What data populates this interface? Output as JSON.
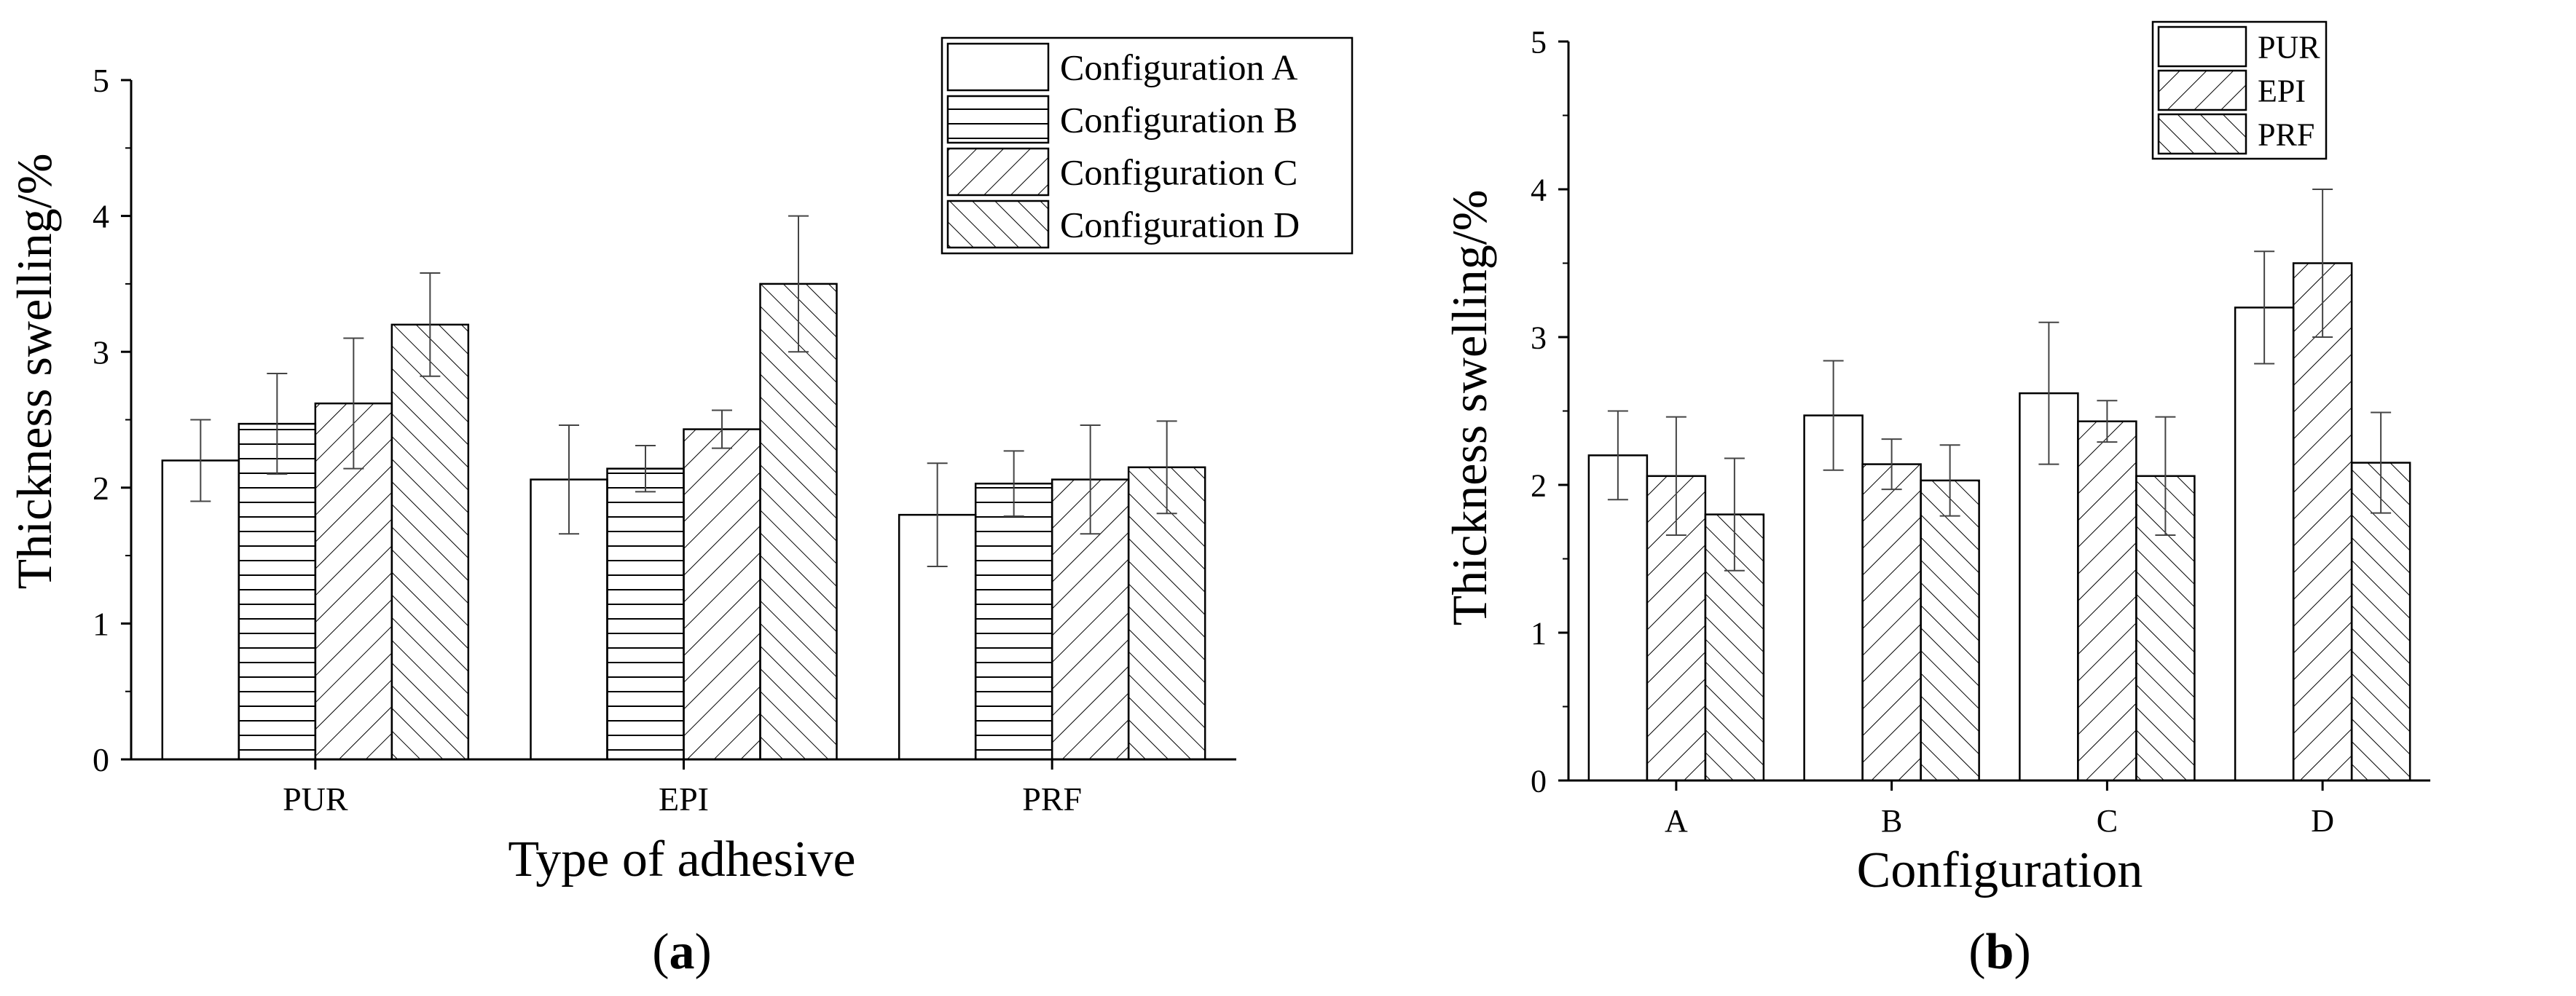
{
  "chart_data": [
    {
      "type": "bar",
      "panel_label": "a",
      "xlabel": "Type of adhesive",
      "ylabel": "Thickness swelling/%",
      "ylim": [
        0,
        5
      ],
      "yticks": [
        "0",
        "1",
        "2",
        "3",
        "4",
        "5"
      ],
      "categories": [
        "PUR",
        "EPI",
        "PRF"
      ],
      "series": [
        {
          "name": "Configuration A",
          "pattern": "plain",
          "values": [
            2.2,
            2.06,
            1.8
          ],
          "errors": [
            0.3,
            0.4,
            0.38
          ]
        },
        {
          "name": "Configuration B",
          "pattern": "horizontal",
          "values": [
            2.47,
            2.14,
            2.03
          ],
          "errors": [
            0.37,
            0.17,
            0.24
          ]
        },
        {
          "name": "Configuration C",
          "pattern": "diagonal-up",
          "values": [
            2.62,
            2.43,
            2.06
          ],
          "errors": [
            0.48,
            0.14,
            0.4
          ]
        },
        {
          "name": "Configuration D",
          "pattern": "diagonal-down",
          "values": [
            3.2,
            3.5,
            2.15
          ],
          "errors": [
            0.38,
            0.5,
            0.34
          ]
        }
      ]
    },
    {
      "type": "bar",
      "panel_label": "b",
      "xlabel": "Configuration",
      "ylabel": "Thickness swelling/%",
      "ylim": [
        0,
        5
      ],
      "yticks": [
        "0",
        "1",
        "2",
        "3",
        "4",
        "5"
      ],
      "categories": [
        "A",
        "B",
        "C",
        "D"
      ],
      "series": [
        {
          "name": "PUR",
          "pattern": "plain",
          "values": [
            2.2,
            2.47,
            2.62,
            3.2
          ],
          "errors": [
            0.3,
            0.37,
            0.48,
            0.38
          ]
        },
        {
          "name": "EPI",
          "pattern": "diagonal-up",
          "values": [
            2.06,
            2.14,
            2.43,
            3.5
          ],
          "errors": [
            0.4,
            0.17,
            0.14,
            0.5
          ]
        },
        {
          "name": "PRF",
          "pattern": "diagonal-down",
          "values": [
            1.8,
            2.03,
            2.06,
            2.15
          ],
          "errors": [
            0.38,
            0.24,
            0.4,
            0.34
          ]
        }
      ]
    }
  ]
}
